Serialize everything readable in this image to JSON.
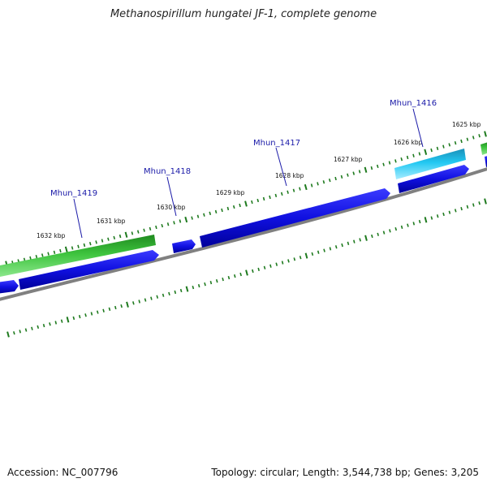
{
  "title": "Methanospirillum hungatei JF-1, complete genome",
  "accession": "Accession: NC_007796",
  "summary": "Topology: circular; Length: 3,544,738 bp; Genes: 3,205",
  "colors": {
    "backbone": "#808080",
    "cds_blue": "#1010e0",
    "gene_green": "#3ec43e",
    "gene_cyan": "#22c8f2",
    "tick_green": "#1e7a1e",
    "label_blue": "#1a1aa8"
  },
  "scale_labels": [
    "1632 kbp",
    "1631 kbp",
    "1630 kbp",
    "1629 kbp",
    "1628 kbp",
    "1627 kbp",
    "1626 kbp",
    "1625 kbp"
  ],
  "gene_labels": [
    "Mhun_1419",
    "Mhun_1418",
    "Mhun_1417",
    "Mhun_1416"
  ]
}
